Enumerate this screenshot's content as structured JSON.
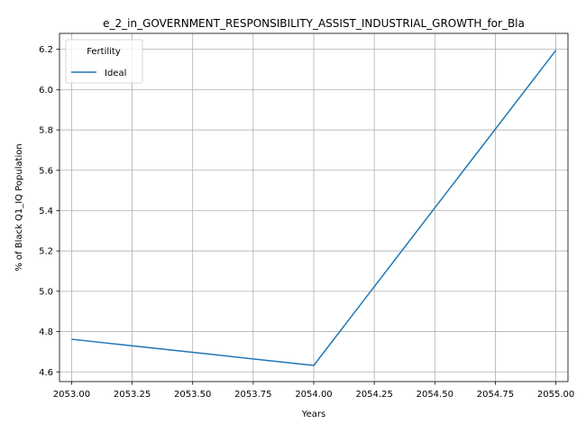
{
  "chart_data": {
    "type": "line",
    "title": "e_2_in_GOVERNMENT_RESPONSIBILITY_ASSIST_INDUSTRIAL_GROWTH_for_Bla",
    "xlabel": "Years",
    "ylabel": "% of Black Q1_IQ Population",
    "xlim": [
      2052.95,
      2055.05
    ],
    "ylim": [
      4.552,
      6.279
    ],
    "x_ticks": [
      2053.0,
      2053.25,
      2053.5,
      2053.75,
      2054.0,
      2054.25,
      2054.5,
      2054.75,
      2055.0
    ],
    "x_tick_labels": [
      "2053.00",
      "2053.25",
      "2053.50",
      "2053.75",
      "2054.00",
      "2054.25",
      "2054.50",
      "2054.75",
      "2055.00"
    ],
    "y_ticks": [
      4.6,
      4.8,
      5.0,
      5.2,
      5.4,
      5.6,
      5.8,
      6.0,
      6.2
    ],
    "y_tick_labels": [
      "4.6",
      "4.8",
      "5.0",
      "5.2",
      "5.4",
      "5.6",
      "5.8",
      "6.0",
      "6.2"
    ],
    "grid": true,
    "legend": {
      "title": "Fertility",
      "placement": "top-left"
    },
    "series": [
      {
        "name": "Ideal",
        "color": "#1f77b4",
        "x": [
          2053,
          2054,
          2055
        ],
        "y": [
          4.762,
          4.632,
          6.195
        ]
      }
    ]
  }
}
